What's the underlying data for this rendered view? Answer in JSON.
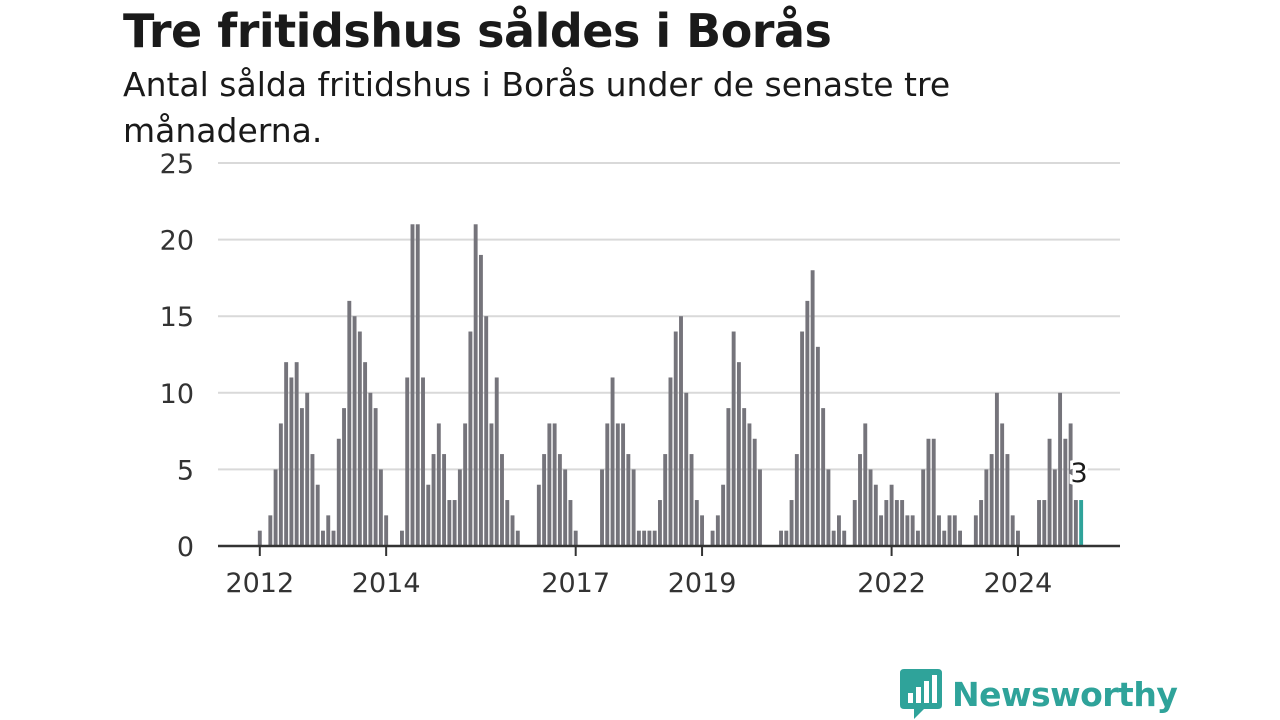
{
  "header": {
    "title": "Tre fritidshus såldes i Borås",
    "subtitle": "Antal sålda fritidshus i Borås under de senaste tre månaderna."
  },
  "brand": {
    "name": "Newsworthy",
    "icon": "newsworthy-logo-icon",
    "color": "#2fa39a"
  },
  "chart_data": {
    "type": "bar",
    "ylim": [
      0,
      25
    ],
    "yticks": [
      0,
      5,
      10,
      15,
      20,
      25
    ],
    "xtick_labels": [
      "2012",
      "2014",
      "2017",
      "2019",
      "2022",
      "2024"
    ],
    "grid": true,
    "bar_color": "#75747b",
    "highlight_color": "#2fa39a",
    "annotation": "3",
    "series": [
      {
        "values": [
          1,
          0,
          2,
          5,
          8,
          12,
          11,
          12,
          9,
          10,
          6,
          4,
          1,
          2,
          1,
          7,
          9,
          16,
          15,
          14,
          12,
          10,
          9,
          5,
          2,
          0,
          0,
          1,
          11,
          21,
          21,
          11,
          4,
          6,
          8,
          6,
          3,
          3,
          5,
          8,
          14,
          21,
          19,
          15,
          8,
          11,
          6,
          3,
          2,
          1,
          0,
          0,
          0,
          4,
          6,
          8,
          8,
          6,
          5,
          3,
          1,
          0,
          0,
          0,
          0,
          5,
          8,
          11,
          8,
          8,
          6,
          5,
          1,
          1,
          1,
          1,
          3,
          6,
          11,
          14,
          15,
          10,
          6,
          3,
          2,
          0,
          1,
          2,
          4,
          9,
          14,
          12,
          9,
          8,
          7,
          5,
          0,
          0,
          0,
          1,
          1,
          3,
          6,
          14,
          16,
          18,
          13,
          9,
          5,
          1,
          2,
          1,
          0,
          3,
          6,
          8,
          5,
          4,
          2,
          3,
          4,
          3,
          3,
          2,
          2,
          1,
          5,
          7,
          7,
          2,
          1,
          2,
          2,
          1,
          0,
          0,
          2,
          3,
          5,
          6,
          10,
          8,
          6,
          2,
          1,
          0,
          0,
          0,
          3,
          3,
          7,
          5,
          10,
          7,
          8,
          3,
          3
        ]
      }
    ]
  }
}
